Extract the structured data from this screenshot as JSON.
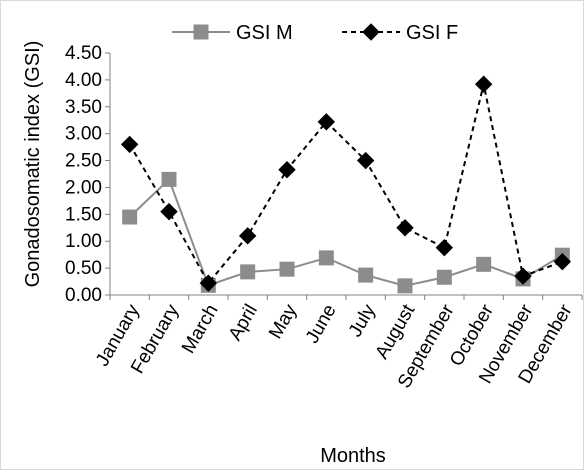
{
  "chart_data": {
    "type": "line",
    "title": "",
    "xlabel": "Months",
    "ylabel": "Gonadosomatic index (GSI)",
    "categories": [
      "January",
      "February",
      "March",
      "April",
      "May",
      "June",
      "July",
      "August",
      "September",
      "October",
      "November",
      "December"
    ],
    "ylim": [
      0,
      4.5
    ],
    "yticks": [
      "0.00",
      "0.50",
      "1.00",
      "1.50",
      "2.00",
      "2.50",
      "3.00",
      "3.50",
      "4.00",
      "4.50"
    ],
    "grid": false,
    "legend_position": "top",
    "series": [
      {
        "name": "GSI M",
        "color": "#8c8c8c",
        "line_style": "solid",
        "marker": "square",
        "values": [
          1.45,
          2.15,
          0.18,
          0.43,
          0.48,
          0.69,
          0.37,
          0.17,
          0.33,
          0.57,
          0.3,
          0.74
        ]
      },
      {
        "name": "GSI F",
        "color": "#000000",
        "line_style": "dashed",
        "marker": "diamond",
        "values": [
          2.8,
          1.55,
          0.22,
          1.1,
          2.33,
          3.22,
          2.5,
          1.25,
          0.88,
          3.92,
          0.35,
          0.62
        ]
      }
    ]
  }
}
